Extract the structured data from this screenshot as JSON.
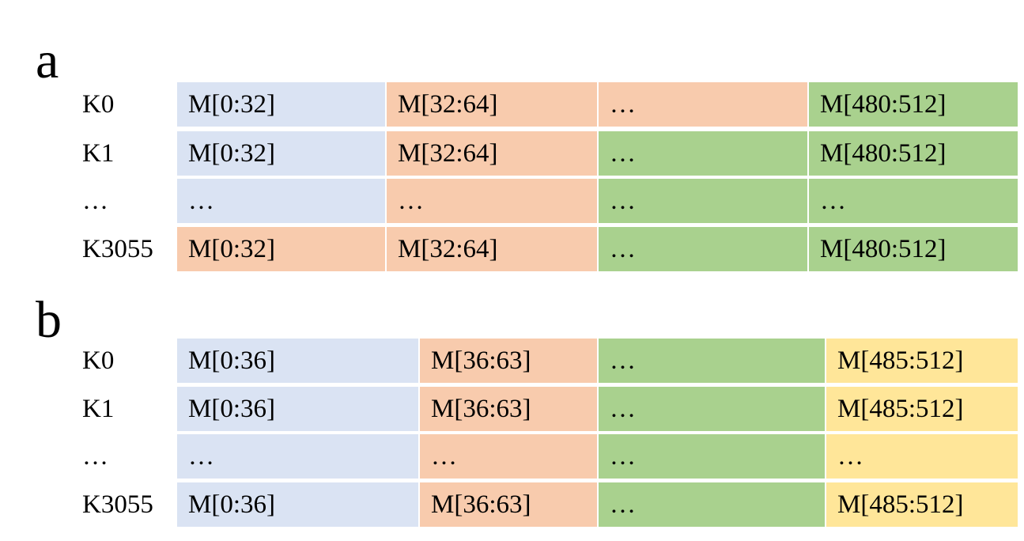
{
  "colors": {
    "blue": "#dae3f3",
    "orange": "#f8cbad",
    "green": "#a9d18e",
    "yellow": "#ffe699"
  },
  "panels": [
    {
      "letter": "a",
      "row_labels": [
        "K0",
        "K1",
        "…",
        "K3055"
      ],
      "rows": [
        [
          {
            "text": "M[0:32]",
            "color": "blue"
          },
          {
            "text": "M[32:64]",
            "color": "orange"
          },
          {
            "text": "…",
            "color": "orange"
          },
          {
            "text": "M[480:512]",
            "color": "green"
          }
        ],
        [
          {
            "text": "M[0:32]",
            "color": "blue"
          },
          {
            "text": "M[32:64]",
            "color": "orange"
          },
          {
            "text": "…",
            "color": "green"
          },
          {
            "text": "M[480:512]",
            "color": "green"
          }
        ],
        [
          {
            "text": "…",
            "color": "blue"
          },
          {
            "text": "…",
            "color": "orange"
          },
          {
            "text": "…",
            "color": "green"
          },
          {
            "text": "…",
            "color": "green"
          }
        ],
        [
          {
            "text": "M[0:32]",
            "color": "orange"
          },
          {
            "text": "M[32:64]",
            "color": "orange"
          },
          {
            "text": "…",
            "color": "green"
          },
          {
            "text": "M[480:512]",
            "color": "green"
          }
        ]
      ]
    },
    {
      "letter": "b",
      "row_labels": [
        "K0",
        "K1",
        "…",
        "K3055"
      ],
      "rows": [
        [
          {
            "text": "M[0:36]",
            "color": "blue"
          },
          {
            "text": "M[36:63]",
            "color": "orange"
          },
          {
            "text": "…",
            "color": "green"
          },
          {
            "text": "M[485:512]",
            "color": "yellow"
          }
        ],
        [
          {
            "text": "M[0:36]",
            "color": "blue"
          },
          {
            "text": "M[36:63]",
            "color": "orange"
          },
          {
            "text": "…",
            "color": "green"
          },
          {
            "text": "M[485:512]",
            "color": "yellow"
          }
        ],
        [
          {
            "text": "…",
            "color": "blue"
          },
          {
            "text": "…",
            "color": "orange"
          },
          {
            "text": "…",
            "color": "green"
          },
          {
            "text": "…",
            "color": "yellow"
          }
        ],
        [
          {
            "text": "M[0:36]",
            "color": "blue"
          },
          {
            "text": "M[36:63]",
            "color": "orange"
          },
          {
            "text": "…",
            "color": "green"
          },
          {
            "text": "M[485:512]",
            "color": "yellow"
          }
        ]
      ]
    }
  ]
}
